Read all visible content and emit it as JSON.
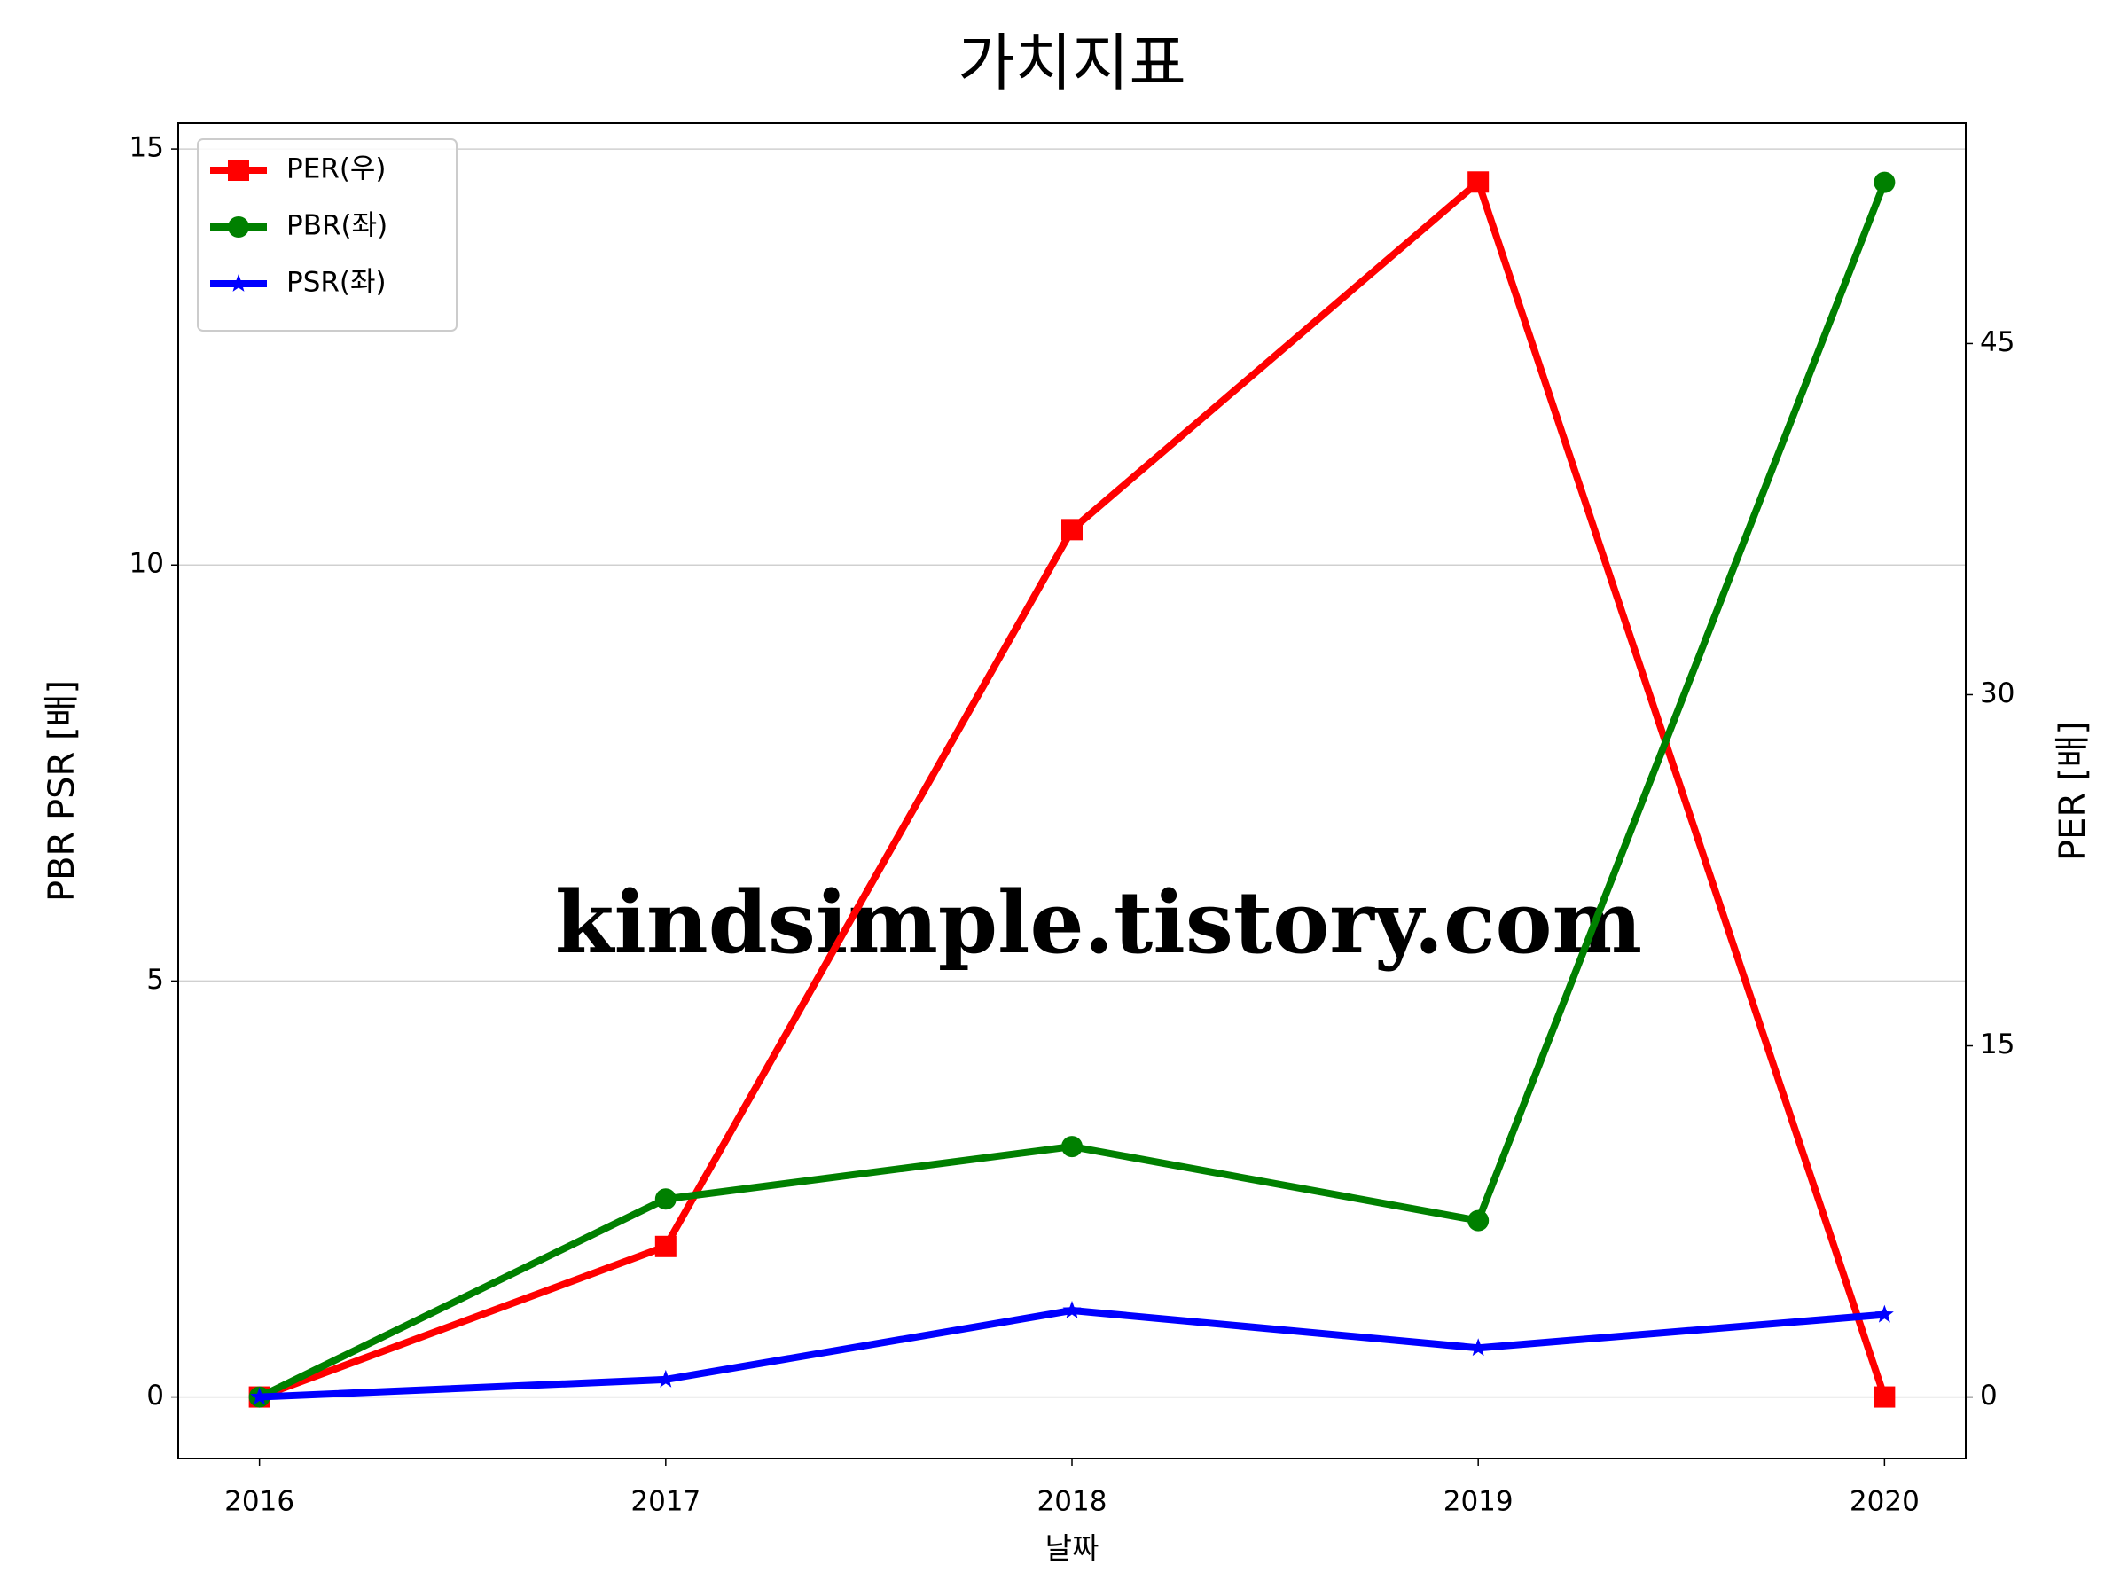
{
  "chart_data": {
    "type": "line",
    "title": "가치지표",
    "xlabel": "날짜",
    "ylabel": "PBR PSR [배]",
    "y2label": "PER [배]",
    "ylabel_color": "#008000",
    "y2label_color": "#ff0000",
    "watermark": "kindsimple.tistory.com",
    "x": [
      2016,
      2017,
      2018,
      2019,
      2020
    ],
    "xlim": [
      2015.8,
      2020.2
    ],
    "xticks": [
      2016,
      2017,
      2018,
      2019,
      2020
    ],
    "ylim": [
      -0.74,
      15.31
    ],
    "yticks": [
      0,
      5,
      10,
      15
    ],
    "y2lim": [
      -2.63,
      54.41
    ],
    "y2ticks": [
      0,
      15,
      30,
      45
    ],
    "grid": true,
    "legend": "upper left",
    "series": [
      {
        "name": "PER(우)",
        "color": "#ff0000",
        "marker": "square",
        "axis": "y2",
        "values": [
          0,
          6.43,
          37.05,
          51.9,
          0
        ]
      },
      {
        "name": "PBR(좌)",
        "color": "#008000",
        "marker": "circle",
        "values": [
          0,
          2.38,
          3.01,
          2.12,
          14.6
        ]
      },
      {
        "name": "PSR(좌)",
        "color": "#0000ff",
        "marker": "star",
        "values": [
          0,
          0.21,
          1.04,
          0.59,
          0.99
        ]
      }
    ]
  }
}
